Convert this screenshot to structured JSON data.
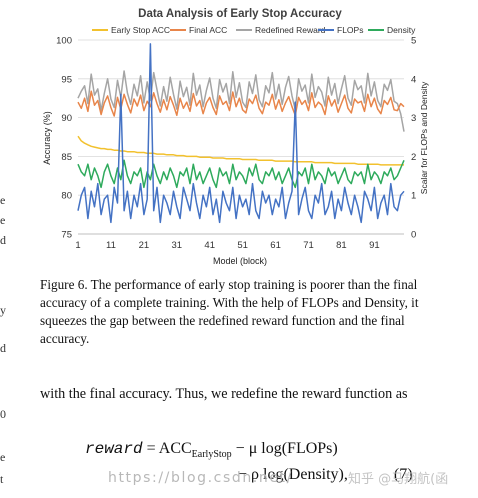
{
  "chart_data": {
    "type": "line",
    "title": "Data Analysis of Early Stop Accuracy",
    "xlabel": "Model (block)",
    "ylabel": "Accuracy (%)",
    "y2label": "Scalar for FLOPs and Density",
    "x_ticks": [
      1,
      11,
      21,
      31,
      41,
      51,
      61,
      71,
      81,
      91
    ],
    "y_ticks": [
      75,
      80,
      85,
      90,
      95,
      100
    ],
    "y2_ticks": [
      0,
      1,
      2,
      3,
      4,
      5
    ],
    "xlim": [
      1,
      100
    ],
    "ylim": [
      75,
      100
    ],
    "y2lim": [
      0,
      5
    ],
    "grid": "horizontal",
    "legend_position": "top",
    "series": [
      {
        "name": "Early Stop ACC",
        "axis": "left",
        "color": "#f2c12e",
        "values": [
          87.6,
          87.0,
          86.7,
          86.5,
          86.3,
          86.2,
          86.1,
          86.0,
          86.0,
          85.9,
          85.9,
          85.8,
          85.8,
          85.7,
          85.7,
          85.6,
          85.6,
          85.6,
          85.5,
          85.5,
          85.5,
          85.4,
          85.4,
          85.4,
          85.3,
          85.3,
          85.3,
          85.2,
          85.2,
          85.2,
          85.1,
          85.1,
          85.1,
          85.0,
          85.0,
          85.0,
          85.0,
          84.9,
          84.9,
          84.9,
          84.9,
          84.8,
          84.8,
          84.8,
          84.8,
          84.7,
          84.7,
          84.7,
          84.7,
          84.7,
          84.6,
          84.6,
          84.6,
          84.6,
          84.6,
          84.5,
          84.5,
          84.5,
          84.5,
          84.5,
          84.4,
          84.4,
          84.4,
          84.4,
          84.4,
          84.4,
          84.3,
          84.3,
          84.3,
          84.3,
          84.3,
          84.3,
          84.2,
          84.2,
          84.2,
          84.2,
          84.2,
          84.2,
          84.1,
          84.1,
          84.1,
          84.1,
          84.1,
          84.1,
          84.1,
          84.0,
          84.0,
          84.0,
          84.0,
          84.0,
          84.0,
          84.0,
          83.9,
          83.9,
          83.9,
          83.9,
          83.9,
          83.9,
          83.9,
          83.9
        ]
      },
      {
        "name": "Final ACC",
        "axis": "left",
        "color": "#e8854a",
        "values": [
          92.0,
          91.2,
          92.5,
          90.8,
          93.4,
          91.6,
          92.2,
          90.4,
          91.9,
          92.8,
          91.3,
          90.2,
          92.6,
          91.1,
          93.0,
          91.7,
          90.6,
          92.4,
          91.5,
          92.9,
          90.9,
          92.1,
          91.4,
          93.2,
          91.8,
          90.7,
          92.3,
          91.0,
          92.7,
          91.6,
          90.3,
          92.5,
          91.2,
          92.0,
          90.8,
          93.1,
          91.5,
          92.2,
          90.5,
          91.9,
          92.6,
          91.3,
          90.4,
          92.8,
          91.7,
          92.1,
          90.9,
          93.3,
          91.4,
          92.5,
          91.0,
          90.6,
          92.4,
          91.8,
          92.9,
          91.2,
          90.5,
          92.0,
          91.6,
          93.0,
          91.1,
          92.3,
          90.8,
          91.9,
          92.7,
          91.4,
          90.3,
          92.6,
          91.7,
          92.2,
          90.9,
          93.2,
          91.3,
          92.0,
          91.6,
          90.4,
          92.8,
          91.5,
          92.3,
          90.7,
          91.8,
          92.9,
          91.2,
          90.6,
          92.4,
          91.9,
          92.1,
          90.8,
          93.0,
          91.4,
          92.5,
          91.1,
          90.5,
          92.2,
          91.7,
          92.6,
          91.0,
          90.9,
          91.8,
          91.4
        ]
      },
      {
        "name": "Redefined Reward",
        "axis": "left",
        "color": "#a5a5a5",
        "values": [
          92.5,
          93.4,
          94.1,
          91.8,
          95.6,
          92.9,
          93.7,
          90.9,
          93.1,
          95.0,
          92.4,
          91.3,
          94.8,
          92.6,
          96.0,
          93.2,
          91.7,
          94.3,
          92.8,
          95.4,
          91.9,
          94.6,
          92.2,
          95.8,
          93.6,
          91.5,
          94.0,
          92.1,
          95.2,
          93.0,
          91.1,
          94.7,
          92.7,
          93.9,
          91.6,
          95.7,
          92.9,
          94.2,
          91.4,
          93.5,
          95.1,
          92.5,
          91.2,
          94.9,
          93.3,
          94.4,
          91.8,
          95.9,
          92.6,
          94.5,
          92.0,
          91.3,
          94.6,
          93.1,
          95.5,
          92.3,
          91.4,
          94.1,
          93.2,
          95.8,
          92.4,
          94.3,
          91.7,
          93.9,
          95.3,
          92.8,
          91.0,
          95.0,
          93.4,
          94.2,
          91.9,
          95.6,
          92.6,
          94.0,
          93.3,
          91.5,
          95.2,
          92.9,
          94.4,
          91.8,
          93.7,
          95.4,
          92.5,
          91.6,
          94.8,
          93.6,
          94.1,
          91.9,
          95.7,
          92.8,
          94.6,
          92.2,
          91.4,
          94.3,
          93.5,
          94.9,
          92.1,
          91.8,
          90.5,
          88.2
        ]
      },
      {
        "name": "FLOPs",
        "axis": "right",
        "color": "#4472c4",
        "values": [
          0.6,
          1.0,
          1.2,
          0.4,
          1.1,
          0.7,
          1.3,
          0.5,
          0.9,
          1.0,
          0.3,
          1.2,
          0.8,
          3.6,
          0.6,
          1.1,
          0.4,
          1.0,
          0.7,
          1.3,
          0.5,
          0.9,
          4.9,
          0.6,
          1.2,
          0.3,
          1.0,
          0.8,
          0.5,
          1.1,
          0.7,
          0.4,
          1.2,
          0.9,
          0.6,
          1.3,
          0.8,
          0.4,
          1.0,
          0.7,
          1.2,
          0.5,
          0.9,
          0.3,
          1.1,
          0.8,
          0.6,
          1.2,
          0.4,
          1.0,
          0.7,
          0.9,
          0.5,
          1.3,
          0.6,
          0.4,
          1.1,
          0.8,
          1.0,
          0.5,
          0.9,
          0.7,
          1.2,
          0.4,
          0.8,
          1.1,
          3.4,
          0.5,
          0.9,
          1.2,
          0.6,
          0.4,
          1.0,
          0.8,
          1.3,
          0.5,
          0.7,
          1.1,
          0.4,
          0.9,
          0.6,
          1.2,
          0.8,
          0.5,
          1.0,
          0.7,
          0.3,
          1.1,
          0.9,
          0.6,
          1.2,
          0.4,
          0.8,
          1.0,
          0.5,
          1.3,
          0.7,
          0.6,
          1.0,
          1.1
        ]
      },
      {
        "name": "Density",
        "axis": "right",
        "color": "#2eaa5c",
        "values": [
          1.8,
          1.6,
          1.5,
          1.8,
          1.4,
          1.7,
          1.5,
          1.2,
          1.6,
          1.8,
          1.5,
          1.3,
          1.7,
          1.4,
          1.9,
          1.5,
          1.3,
          1.6,
          1.5,
          1.7,
          1.2,
          1.6,
          1.4,
          1.8,
          1.5,
          1.3,
          1.6,
          1.4,
          1.7,
          1.5,
          1.2,
          1.6,
          1.5,
          1.7,
          1.3,
          1.8,
          1.4,
          1.6,
          1.3,
          1.5,
          1.7,
          1.4,
          1.2,
          1.7,
          1.5,
          1.6,
          1.3,
          1.8,
          1.4,
          1.6,
          1.5,
          1.3,
          1.7,
          1.5,
          1.8,
          1.4,
          1.3,
          1.6,
          1.5,
          1.7,
          1.4,
          1.6,
          1.3,
          1.5,
          1.7,
          1.4,
          1.2,
          1.6,
          1.5,
          1.7,
          1.3,
          1.8,
          1.4,
          1.6,
          1.5,
          1.3,
          1.7,
          1.5,
          1.6,
          1.3,
          1.5,
          1.7,
          1.4,
          1.3,
          1.6,
          1.5,
          1.6,
          1.3,
          1.8,
          1.4,
          1.6,
          1.5,
          1.3,
          1.6,
          1.5,
          1.7,
          1.4,
          1.5,
          1.7,
          1.9
        ]
      }
    ]
  },
  "caption": "Figure 6. The performance of early stop training is poorer than the final accuracy of a complete training. With the help of FLOPs and Density, it squeezes the gap between the redefined reward function and the final accuracy.",
  "paragraph": "with the final accuracy. Thus, we redefine the reward function as",
  "equation": {
    "lhs": "reward",
    "eq": "=",
    "acc": "ACC",
    "acc_sub": "EarlyStop",
    "term1": "− μ log(FLOPs)",
    "term2": "− ρ log(Density),",
    "number": "(7)"
  },
  "watermark": {
    "url": "https://blog.csdn.net/",
    "author": "知乎 @马翔航(函"
  },
  "margin_glyphs": [
    "e",
    "e",
    "d",
    "y",
    "d",
    "0",
    "e",
    "t"
  ]
}
